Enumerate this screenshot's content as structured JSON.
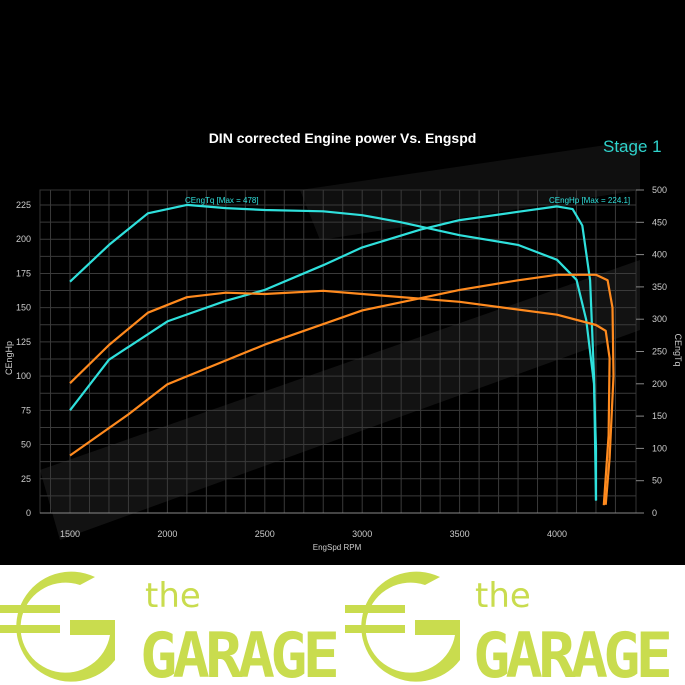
{
  "chart_data": {
    "type": "line",
    "title": "DIN corrected Engine power Vs. Engspd",
    "badge": "Stage 1",
    "xlabel": "EngSpd RPM",
    "ylabel_left": "CEngHp",
    "ylabel_right": "CEngTq",
    "xlim": [
      1350,
      4400
    ],
    "ylim_left": [
      0,
      235
    ],
    "ylim_right": [
      0,
      500
    ],
    "xticks": [
      1500,
      2000,
      2500,
      3000,
      3500,
      4000
    ],
    "yticks_left": [
      0,
      25,
      50,
      75,
      100,
      125,
      150,
      175,
      200,
      225
    ],
    "yticks_right": [
      0,
      50,
      100,
      150,
      200,
      250,
      300,
      350,
      400,
      450,
      500
    ],
    "grid": true,
    "annotations": [
      "CEngTq [Max = 478]",
      "CEngHp [Max = 224.1]"
    ],
    "series": [
      {
        "id": "tuned-torque",
        "axis": "right",
        "color": "#2fe0dc",
        "x": [
          1500,
          1700,
          1900,
          2100,
          2300,
          2500,
          2800,
          3000,
          3200,
          3500,
          3800,
          4000,
          4100,
          4150,
          4190,
          4200,
          4200
        ],
        "y": [
          358,
          415,
          464,
          477,
          472,
          469,
          467,
          461,
          450,
          430,
          415,
          392,
          361,
          299,
          200,
          100,
          20
        ]
      },
      {
        "id": "tuned-power",
        "axis": "left",
        "color": "#2fe0dc",
        "x": [
          1500,
          1700,
          2000,
          2300,
          2500,
          2800,
          3000,
          3300,
          3500,
          3800,
          4000,
          4080,
          4130,
          4170,
          4190,
          4200
        ],
        "y": [
          75,
          112,
          140,
          155,
          163,
          181,
          194,
          207,
          214,
          220,
          224,
          222,
          210,
          170,
          100,
          9
        ]
      },
      {
        "id": "stock-torque",
        "axis": "right",
        "color": "#ff8a1e",
        "x": [
          1500,
          1700,
          1900,
          2100,
          2300,
          2500,
          2800,
          3000,
          3500,
          4000,
          4200,
          4250,
          4270,
          4265,
          4240
        ],
        "y": [
          201,
          260,
          310,
          334,
          341,
          339,
          344,
          339,
          327,
          307,
          291,
          282,
          240,
          120,
          12
        ]
      },
      {
        "id": "stock-power",
        "axis": "left",
        "color": "#ff8a1e",
        "x": [
          1500,
          1800,
          2000,
          2500,
          3000,
          3500,
          3800,
          4000,
          4200,
          4260,
          4285,
          4290,
          4270,
          4250
        ],
        "y": [
          42,
          72,
          94,
          123,
          148,
          163,
          170,
          174,
          174,
          170,
          150,
          100,
          40,
          6
        ]
      }
    ]
  },
  "footer": {
    "logo_small": "the",
    "logo_big": "GARAGE",
    "brand_color": "#c9dc4e"
  }
}
